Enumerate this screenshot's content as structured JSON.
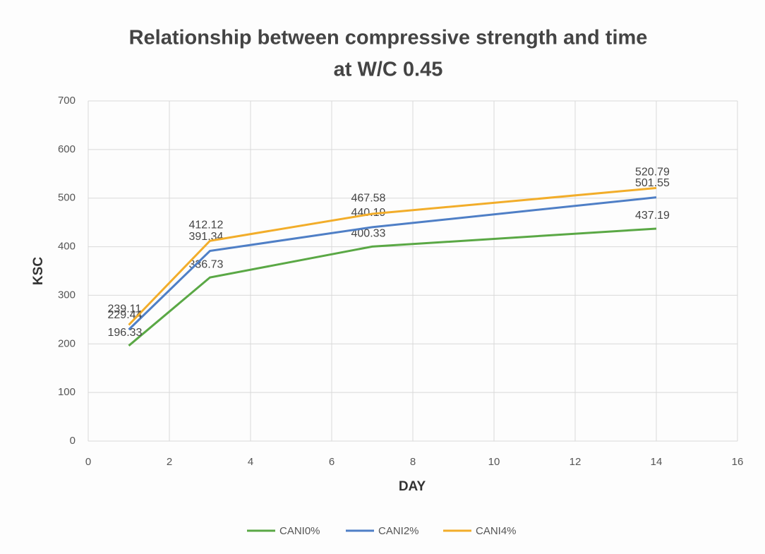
{
  "chart_data": {
    "type": "line",
    "title": "Relationship between compressive strength and time",
    "subtitle": "at W/C 0.45",
    "x_label": "DAY",
    "y_label": "KSC",
    "x": [
      1,
      3,
      7,
      14
    ],
    "series": [
      {
        "name": "CANI0%",
        "color": "#5aa845",
        "values": [
          196.33,
          336.73,
          400.33,
          437.19
        ]
      },
      {
        "name": "CANI2%",
        "color": "#4f7fc6",
        "values": [
          229.44,
          391.34,
          440.19,
          501.55
        ]
      },
      {
        "name": "CANI4%",
        "color": "#f2ad2a",
        "values": [
          239.11,
          412.12,
          467.58,
          520.79
        ]
      }
    ],
    "xlim": [
      0,
      16
    ],
    "xticks": [
      0,
      2,
      4,
      6,
      8,
      10,
      12,
      14,
      16
    ],
    "ylim": [
      0,
      700
    ],
    "yticks": [
      0,
      100,
      200,
      300,
      400,
      500,
      600,
      700
    ],
    "grid": true,
    "legend": "bottom"
  }
}
